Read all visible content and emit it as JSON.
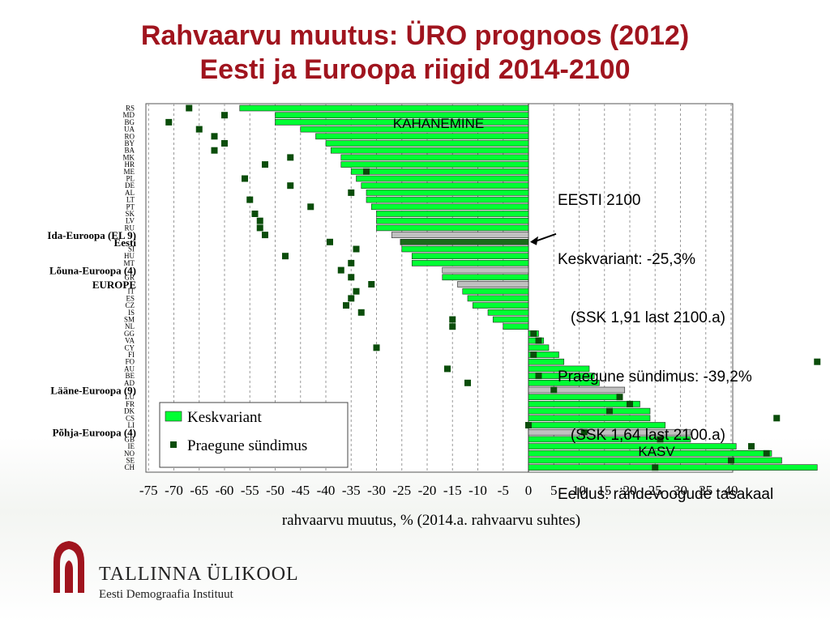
{
  "title_line1": "Rahvaarvu muutus: ÜRO prognoos (2012)",
  "title_line2": "Eesti ja Euroopa riigid 2014-2100",
  "colors": {
    "title": "#a0141e",
    "bar_main": "#00ff33",
    "bar_highlight": "#1a6b1a",
    "bar_aggregate": "#c0c0c0",
    "marker": "#0a4d0a"
  },
  "chart_data": {
    "type": "bar",
    "orientation": "horizontal",
    "xlabel": "rahvaarvu muutus, % (2014.a. rahvaarvu suhtes)",
    "xlim": [
      -75,
      40
    ],
    "xticks": [
      -75,
      -70,
      -65,
      -60,
      -55,
      -50,
      -45,
      -40,
      -35,
      -30,
      -25,
      -20,
      -15,
      -10,
      -5,
      0,
      5,
      10,
      15,
      20,
      25,
      30,
      35,
      40
    ],
    "grid": "vertical dashed",
    "legend_position": "bottom-left",
    "region_labels": [
      "KAHANEMINE",
      "KASV"
    ],
    "series": [
      {
        "name": "Keskvariant",
        "marker": "bar"
      },
      {
        "name": "Praegune sündimus",
        "marker": "square"
      }
    ],
    "categories": [
      {
        "label": "RS",
        "keskvariant": -57,
        "praegune": -67
      },
      {
        "label": "MD",
        "keskvariant": -50,
        "praegune": -60
      },
      {
        "label": "BG",
        "keskvariant": -50,
        "praegune": -71
      },
      {
        "label": "UA",
        "keskvariant": -45,
        "praegune": -65
      },
      {
        "label": "RO",
        "keskvariant": -42,
        "praegune": -62
      },
      {
        "label": "BY",
        "keskvariant": -40,
        "praegune": -60
      },
      {
        "label": "BA",
        "keskvariant": -39,
        "praegune": -62
      },
      {
        "label": "MK",
        "keskvariant": -37,
        "praegune": -47
      },
      {
        "label": "HR",
        "keskvariant": -37,
        "praegune": -52
      },
      {
        "label": "ME",
        "keskvariant": -35,
        "praegune": -32
      },
      {
        "label": "PL",
        "keskvariant": -34,
        "praegune": -56
      },
      {
        "label": "DE",
        "keskvariant": -33,
        "praegune": -47
      },
      {
        "label": "AL",
        "keskvariant": -32,
        "praegune": -35
      },
      {
        "label": "LT",
        "keskvariant": -32,
        "praegune": -55
      },
      {
        "label": "PT",
        "keskvariant": -31,
        "praegune": -43
      },
      {
        "label": "SK",
        "keskvariant": -30,
        "praegune": -54
      },
      {
        "label": "LV",
        "keskvariant": -30,
        "praegune": -53
      },
      {
        "label": "RU",
        "keskvariant": -30,
        "praegune": -53
      },
      {
        "label": "Ida-Euroopa (EL 9)",
        "keskvariant": -27,
        "praegune": -52,
        "aggregate": true
      },
      {
        "label": "Eesti",
        "keskvariant": -25.3,
        "praegune": -39.2,
        "highlight": true
      },
      {
        "label": "SI",
        "keskvariant": -25,
        "praegune": -34
      },
      {
        "label": "HU",
        "keskvariant": -23,
        "praegune": -48
      },
      {
        "label": "MT",
        "keskvariant": -23,
        "praegune": -35
      },
      {
        "label": "Lõuna-Euroopa (4)",
        "keskvariant": -17,
        "praegune": -37,
        "aggregate": true
      },
      {
        "label": "GR",
        "keskvariant": -17,
        "praegune": -35
      },
      {
        "label": "EUROPE",
        "keskvariant": -14,
        "praegune": -31,
        "aggregate": true
      },
      {
        "label": "IT",
        "keskvariant": -13,
        "praegune": -34
      },
      {
        "label": "ES",
        "keskvariant": -12,
        "praegune": -35
      },
      {
        "label": "CZ",
        "keskvariant": -11,
        "praegune": -36
      },
      {
        "label": "IS",
        "keskvariant": -8,
        "praegune": -33
      },
      {
        "label": "SM",
        "keskvariant": -7,
        "praegune": -15
      },
      {
        "label": "NL",
        "keskvariant": -5,
        "praegune": -15
      },
      {
        "label": "GG",
        "keskvariant": 2,
        "praegune": 1
      },
      {
        "label": "VA",
        "keskvariant": 3,
        "praegune": 2
      },
      {
        "label": "CY",
        "keskvariant": 4,
        "praegune": -30
      },
      {
        "label": "FI",
        "keskvariant": 6,
        "praegune": 1
      },
      {
        "label": "FO",
        "keskvariant": 7,
        "praegune": 57
      },
      {
        "label": "AU",
        "keskvariant": 12,
        "praegune": -16
      },
      {
        "label": "BE",
        "keskvariant": 13,
        "praegune": 2
      },
      {
        "label": "AD",
        "keskvariant": 14,
        "praegune": -12
      },
      {
        "label": "Lääne-Euroopa (9)",
        "keskvariant": 19,
        "praegune": 5,
        "aggregate": true
      },
      {
        "label": "LU",
        "keskvariant": 18,
        "praegune": 18
      },
      {
        "label": "FR",
        "keskvariant": 22,
        "praegune": 20
      },
      {
        "label": "DK",
        "keskvariant": 24,
        "praegune": 16
      },
      {
        "label": "CS",
        "keskvariant": 24,
        "praegune": 49
      },
      {
        "label": "LI",
        "keskvariant": 27,
        "praegune": 0
      },
      {
        "label": "Põhja-Euroopa (4)",
        "keskvariant": 32,
        "praegune": 11,
        "aggregate": true
      },
      {
        "label": "GB",
        "keskvariant": 32,
        "praegune": 26
      },
      {
        "label": "IE",
        "keskvariant": 41,
        "praegune": 44
      },
      {
        "label": "NO",
        "keskvariant": 48,
        "praegune": 47
      },
      {
        "label": "SE",
        "keskvariant": 50,
        "praegune": 40
      },
      {
        "label": "CH",
        "keskvariant": 57,
        "praegune": 25
      }
    ]
  },
  "annotation": {
    "lines": [
      "EESTI 2100",
      "Keskvariant: -25,3%",
      "   (SSK 1,91 last 2100.a)",
      "Praegune sündimus: -39,2%",
      "   (SSK 1,64 last 2100.a)",
      "Eeldus: rändevoogude tasakaal"
    ]
  },
  "institution": {
    "name": "TALLINNA ÜLIKOOL",
    "subtitle": "Eesti Demograafia Instituut"
  }
}
